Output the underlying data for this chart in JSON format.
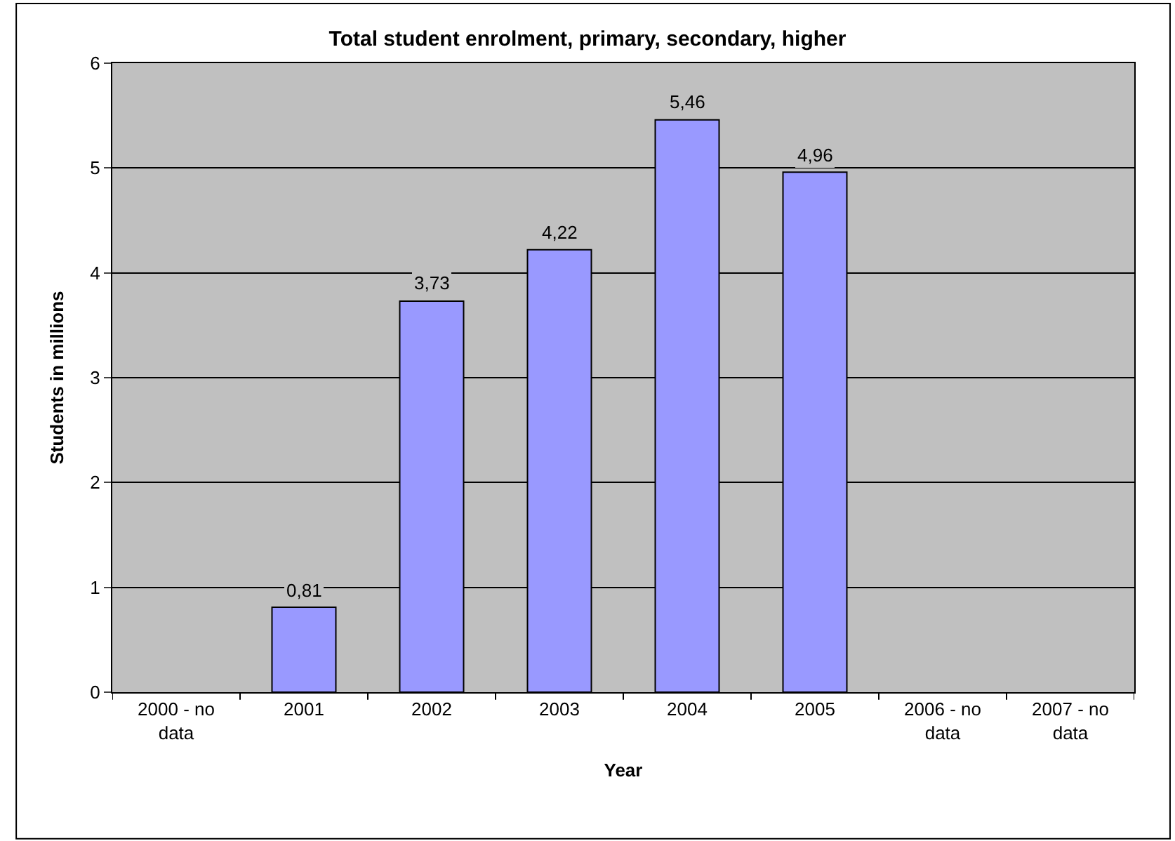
{
  "chart_data": {
    "type": "bar",
    "title": "Total student enrolment, primary, secondary, higher",
    "xlabel": "Year",
    "ylabel": "Students in millions",
    "categories": [
      "2000 - no data",
      "2001",
      "2002",
      "2003",
      "2004",
      "2005",
      "2006 - no data",
      "2007 - no data"
    ],
    "values": [
      null,
      0.81,
      3.73,
      4.22,
      5.46,
      4.96,
      null,
      null
    ],
    "value_labels": [
      null,
      "0,81",
      "3,73",
      "4,22",
      "5,46",
      "4,96",
      null,
      null
    ],
    "color": "#9999ff",
    "ylim": [
      0,
      6
    ],
    "yticks": [
      0,
      1,
      2,
      3,
      4,
      5,
      6
    ],
    "grid": "y"
  }
}
